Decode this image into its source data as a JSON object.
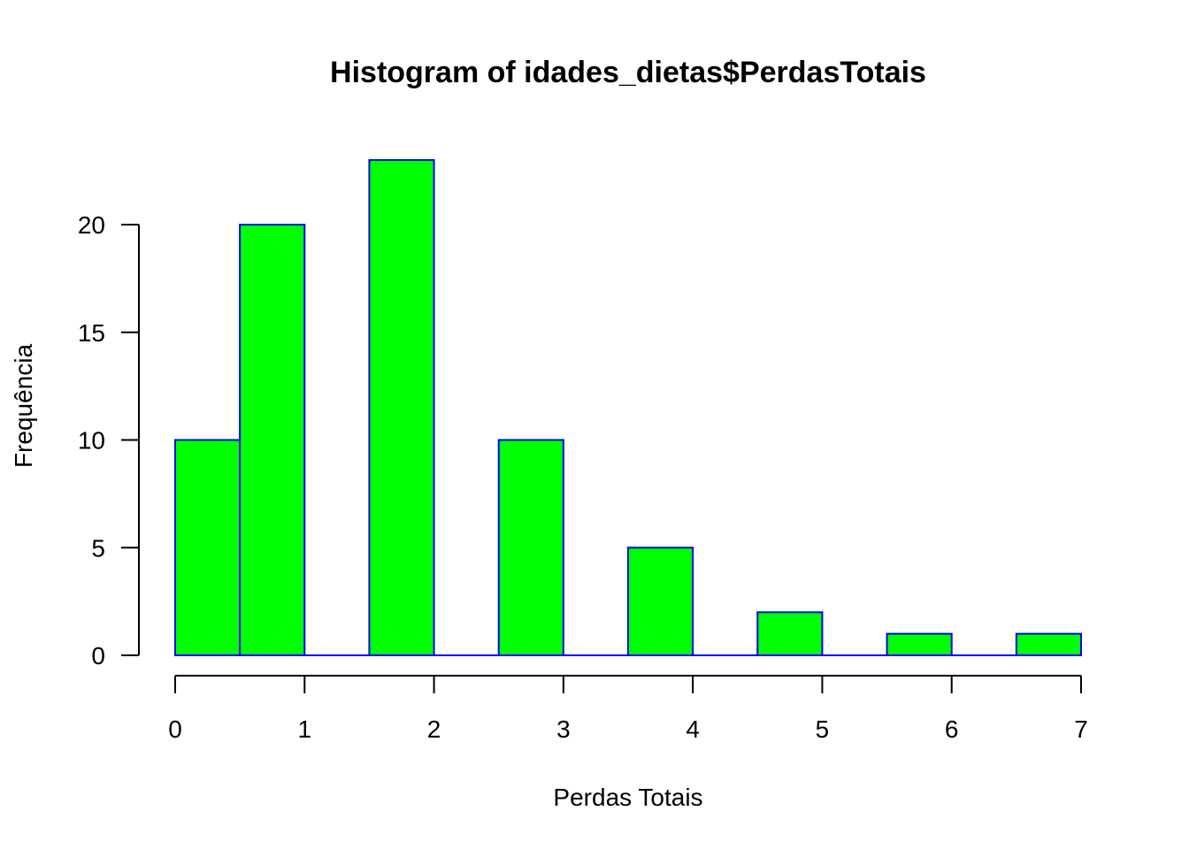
{
  "chart_data": {
    "type": "bar",
    "title": "Histogram of idades_dietas$PerdasTotais",
    "xlabel": "Perdas Totais",
    "ylabel": "Frequência",
    "bins": [
      {
        "x0": 0.0,
        "x1": 0.5,
        "count": 10
      },
      {
        "x0": 0.5,
        "x1": 1.0,
        "count": 20
      },
      {
        "x0": 1.0,
        "x1": 1.5,
        "count": 0
      },
      {
        "x0": 1.5,
        "x1": 2.0,
        "count": 23
      },
      {
        "x0": 2.0,
        "x1": 2.5,
        "count": 0
      },
      {
        "x0": 2.5,
        "x1": 3.0,
        "count": 10
      },
      {
        "x0": 3.0,
        "x1": 3.5,
        "count": 0
      },
      {
        "x0": 3.5,
        "x1": 4.0,
        "count": 5
      },
      {
        "x0": 4.0,
        "x1": 4.5,
        "count": 0
      },
      {
        "x0": 4.5,
        "x1": 5.0,
        "count": 2
      },
      {
        "x0": 5.0,
        "x1": 5.5,
        "count": 0
      },
      {
        "x0": 5.5,
        "x1": 6.0,
        "count": 1
      },
      {
        "x0": 6.0,
        "x1": 6.5,
        "count": 0
      },
      {
        "x0": 6.5,
        "x1": 7.0,
        "count": 1
      }
    ],
    "xlim": [
      0,
      7
    ],
    "ylim": [
      0,
      23
    ],
    "xticks": [
      0,
      1,
      2,
      3,
      4,
      5,
      6,
      7
    ],
    "yticks": [
      0,
      5,
      10,
      15,
      20
    ],
    "grid": false,
    "legend": "none",
    "bar_fill": "#00ff00",
    "bar_border": "#0000ff"
  }
}
